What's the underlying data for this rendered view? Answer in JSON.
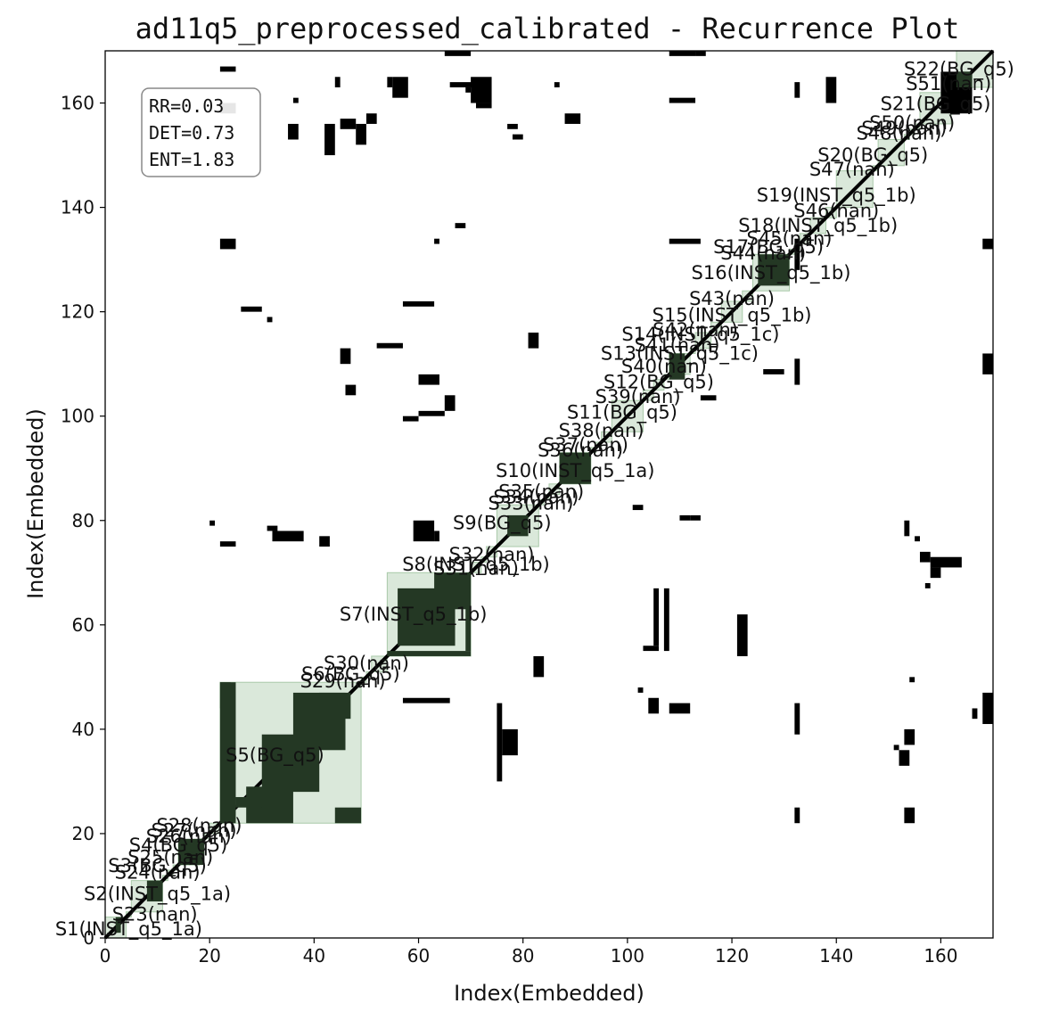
{
  "chart_data": {
    "type": "heatmap",
    "subtype": "recurrence_plot",
    "title": "ad11q5_preprocessed_calibrated - Recurrence Plot",
    "xlabel": "Index(Embedded)",
    "ylabel": "Index(Embedded)",
    "xlim": [
      0,
      170
    ],
    "ylim": [
      0,
      170
    ],
    "xticks": [
      "0",
      "20",
      "40",
      "60",
      "80",
      "100",
      "120",
      "140",
      "160"
    ],
    "yticks": [
      "0",
      "20",
      "40",
      "60",
      "80",
      "100",
      "120",
      "140",
      "160"
    ],
    "grid": false,
    "colors": {
      "recurrence": "#000000",
      "segment_fill": "#d6e6d6",
      "segment_stroke": "#a9c9a9",
      "block_on_segment": "#243824"
    },
    "stats": [
      "RR=0.03",
      "DET=0.73",
      "ENT=1.83"
    ],
    "segments": [
      {
        "label": "S1(INST_q5_1a)",
        "start": 0,
        "end": 4
      },
      {
        "label": "S23(nan)",
        "start": 4,
        "end": 5
      },
      {
        "label": "S2(INST_q5_1a)",
        "start": 5,
        "end": 11
      },
      {
        "label": "S24(nan)",
        "start": 11,
        "end": 12
      },
      {
        "label": "S3(BG_q5)",
        "start": 12,
        "end": 13
      },
      {
        "label": "S25(nan)",
        "start": 13,
        "end": 14
      },
      {
        "label": "S4(BG_q5)",
        "start": 14,
        "end": 18
      },
      {
        "label": "S26(nan)",
        "start": 18,
        "end": 19
      },
      {
        "label": "S27(nan)",
        "start": 19,
        "end": 20
      },
      {
        "label": "S28(nan)",
        "start": 20,
        "end": 22
      },
      {
        "label": "S5(BG_q5)",
        "start": 22,
        "end": 49
      },
      {
        "label": "S29(nan)",
        "start": 49,
        "end": 50
      },
      {
        "label": "S6(BG_q5)",
        "start": 50,
        "end": 51
      },
      {
        "label": "S30(nan)",
        "start": 51,
        "end": 54
      },
      {
        "label": "S7(INST_q5_1b)",
        "start": 54,
        "end": 70
      },
      {
        "label": "S8(INST_q5_1b)",
        "start": 70,
        "end": 72
      },
      {
        "label": "S31(nan)",
        "start": 72,
        "end": 73
      },
      {
        "label": "S32(nan)",
        "start": 73,
        "end": 75
      },
      {
        "label": "S9(BG_q5)",
        "start": 75,
        "end": 83
      },
      {
        "label": "S33(nan)",
        "start": 83,
        "end": 84
      },
      {
        "label": "S34(nan)",
        "start": 84,
        "end": 85
      },
      {
        "label": "S35(nan)",
        "start": 85,
        "end": 87
      },
      {
        "label": "S10(INST_q5_1a)",
        "start": 87,
        "end": 93
      },
      {
        "label": "S36(nan)",
        "start": 93,
        "end": 94
      },
      {
        "label": "S37(nan)",
        "start": 94,
        "end": 95
      },
      {
        "label": "S38(nan)",
        "start": 95,
        "end": 97
      },
      {
        "label": "S11(BG_q5)",
        "start": 97,
        "end": 103
      },
      {
        "label": "S39(nan)",
        "start": 103,
        "end": 105
      },
      {
        "label": "S12(BG_q5)",
        "start": 105,
        "end": 107
      },
      {
        "label": "S40(nan)",
        "start": 107,
        "end": 108
      },
      {
        "label": "S13(INST_q5_1c)",
        "start": 108,
        "end": 112
      },
      {
        "label": "S41(nan)",
        "start": 112,
        "end": 113
      },
      {
        "label": "S14(INST_q5_1c)",
        "start": 113,
        "end": 116
      },
      {
        "label": "S42(nan)",
        "start": 116,
        "end": 118
      },
      {
        "label": "S15(INST_q5_1b)",
        "start": 118,
        "end": 122
      },
      {
        "label": "S43(nan)",
        "start": 122,
        "end": 124
      },
      {
        "label": "S16(INST_q5_1b)",
        "start": 124,
        "end": 131
      },
      {
        "label": "S44(nan)",
        "start": 131,
        "end": 132
      },
      {
        "label": "S17(BG_q5)",
        "start": 132,
        "end": 133
      },
      {
        "label": "S45(nan)",
        "start": 133,
        "end": 135
      },
      {
        "label": "S18(INST_q5_1b)",
        "start": 135,
        "end": 138
      },
      {
        "label": "S46(nan)",
        "start": 138,
        "end": 140
      },
      {
        "label": "S19(INST_q5_1b)",
        "start": 140,
        "end": 147
      },
      {
        "label": "S47(nan)",
        "start": 147,
        "end": 148
      },
      {
        "label": "S20(BG_q5)",
        "start": 148,
        "end": 153
      },
      {
        "label": "S48(nan)",
        "start": 153,
        "end": 154
      },
      {
        "label": "S49(nan)",
        "start": 154,
        "end": 155
      },
      {
        "label": "S50(nan)",
        "start": 155,
        "end": 156
      },
      {
        "label": "S21(BG_q5)",
        "start": 156,
        "end": 162
      },
      {
        "label": "S51(nan)",
        "start": 162,
        "end": 163
      },
      {
        "label": "S22(BG_q5)",
        "start": 163,
        "end": 170
      }
    ],
    "recurrence_blocks": [
      [
        22,
        25,
        22,
        49
      ],
      [
        27,
        36,
        22,
        29
      ],
      [
        30,
        41,
        28,
        39
      ],
      [
        36,
        46,
        36,
        47
      ],
      [
        44,
        49,
        22,
        25
      ],
      [
        22,
        24,
        44,
        49
      ],
      [
        25,
        30,
        25,
        27
      ],
      [
        41,
        47,
        42,
        47
      ],
      [
        56,
        67,
        56,
        67
      ],
      [
        54,
        70,
        54,
        55
      ],
      [
        69,
        70,
        55,
        70
      ],
      [
        63,
        70,
        63,
        70
      ],
      [
        87,
        93,
        87,
        93
      ],
      [
        108,
        111,
        107,
        112
      ],
      [
        125,
        131,
        125,
        131
      ],
      [
        160,
        166,
        158,
        166
      ],
      [
        163,
        166,
        163,
        166
      ],
      [
        77,
        81,
        77,
        81
      ],
      [
        8,
        11,
        7,
        11
      ],
      [
        2,
        3,
        1,
        4
      ],
      [
        14,
        19,
        14,
        19
      ],
      [
        22,
        25,
        75,
        76
      ],
      [
        22,
        25,
        132,
        134
      ],
      [
        22,
        25,
        158,
        160
      ],
      [
        22,
        25,
        166,
        167
      ],
      [
        26,
        30,
        120,
        121
      ],
      [
        31,
        32,
        118,
        119
      ],
      [
        32,
        38,
        76,
        78
      ],
      [
        41,
        43,
        75,
        77
      ],
      [
        45,
        47,
        110,
        113
      ],
      [
        45,
        48,
        155,
        157
      ],
      [
        46,
        48,
        104,
        106
      ],
      [
        48,
        50,
        152,
        156
      ],
      [
        52,
        57,
        113,
        114
      ],
      [
        57,
        60,
        99,
        100
      ],
      [
        59,
        63,
        76,
        80
      ],
      [
        60,
        65,
        100,
        101
      ],
      [
        60,
        64,
        106,
        108
      ],
      [
        57,
        66,
        45,
        46
      ],
      [
        57,
        63,
        121,
        122
      ],
      [
        65,
        67,
        101,
        104
      ],
      [
        63,
        64,
        76,
        78
      ],
      [
        67,
        69,
        136,
        137
      ],
      [
        54,
        55,
        163,
        165
      ],
      [
        75,
        76,
        30,
        45
      ],
      [
        76,
        79,
        35,
        40
      ],
      [
        81,
        83,
        113,
        116
      ],
      [
        82,
        84,
        50,
        54
      ],
      [
        63,
        64,
        133,
        134
      ],
      [
        105,
        106,
        56,
        67
      ],
      [
        107,
        108,
        55,
        67
      ],
      [
        103,
        106,
        55,
        56
      ],
      [
        104,
        106,
        43,
        46
      ],
      [
        108,
        114,
        133,
        134
      ],
      [
        108,
        112,
        43,
        45
      ],
      [
        108,
        113,
        160,
        161
      ],
      [
        110,
        112,
        80,
        81
      ],
      [
        112,
        114,
        80,
        81
      ],
      [
        101,
        103,
        82,
        83
      ],
      [
        102,
        103,
        47,
        48
      ],
      [
        113,
        115,
        169,
        170
      ],
      [
        114,
        117,
        103,
        104
      ],
      [
        121,
        123,
        54,
        62
      ],
      [
        126,
        130,
        108,
        109
      ],
      [
        132,
        133,
        106,
        111
      ],
      [
        132,
        133,
        22,
        25
      ],
      [
        132,
        133,
        39,
        45
      ],
      [
        132,
        133,
        161,
        164
      ],
      [
        132,
        133,
        128,
        134
      ],
      [
        138,
        140,
        160,
        165
      ],
      [
        153,
        155,
        22,
        25
      ],
      [
        153,
        155,
        37,
        40
      ],
      [
        154,
        155,
        49,
        50
      ],
      [
        156,
        158,
        72,
        74
      ],
      [
        158,
        164,
        71,
        73
      ],
      [
        158,
        160,
        69,
        71
      ],
      [
        157,
        158,
        67,
        68
      ],
      [
        153,
        154,
        77,
        80
      ],
      [
        155,
        156,
        76,
        77
      ],
      [
        168,
        170,
        108,
        112
      ],
      [
        168,
        170,
        132,
        134
      ],
      [
        168,
        170,
        41,
        47
      ],
      [
        166,
        167,
        42,
        44
      ],
      [
        152,
        154,
        33,
        36
      ],
      [
        151,
        152,
        36,
        37
      ],
      [
        42,
        44,
        150,
        156
      ],
      [
        35,
        37,
        153,
        156
      ],
      [
        44,
        45,
        163,
        165
      ],
      [
        36,
        37,
        160,
        161
      ],
      [
        50,
        52,
        156,
        158
      ],
      [
        55,
        58,
        161,
        165
      ],
      [
        65,
        70,
        169,
        170
      ],
      [
        71,
        74,
        159,
        160
      ],
      [
        69,
        70,
        162,
        163
      ],
      [
        66,
        72,
        163,
        164
      ],
      [
        70,
        74,
        160,
        165
      ],
      [
        77,
        79,
        155,
        156
      ],
      [
        78,
        80,
        153,
        154
      ],
      [
        86,
        87,
        163,
        164
      ],
      [
        88,
        91,
        156,
        158
      ],
      [
        108,
        113,
        169,
        170
      ],
      [
        20,
        21,
        79,
        80
      ],
      [
        31,
        33,
        78,
        79
      ]
    ],
    "label_anchors": [
      {
        "label": "S1(INST_q5_1a)",
        "x": 4.5,
        "y": 1.7
      },
      {
        "label": "S23(nan)",
        "x": 9.5,
        "y": 4.5
      },
      {
        "label": "S2(INST_q5_1a)",
        "x": 10,
        "y": 8.5
      },
      {
        "label": "S24(nan)",
        "x": 10,
        "y": 12.6
      },
      {
        "label": "S3(BG_q5)",
        "x": 10,
        "y": 13.8
      },
      {
        "label": "S25(nan)",
        "x": 12.5,
        "y": 15.5
      },
      {
        "label": "S4(BG_q5)",
        "x": 14,
        "y": 17.8
      },
      {
        "label": "S26(nan)",
        "x": 16,
        "y": 19.5
      },
      {
        "label": "S27(nan)",
        "x": 17,
        "y": 20.6
      },
      {
        "label": "S28(nan)",
        "x": 18,
        "y": 21.5
      },
      {
        "label": "S5(BG_q5)",
        "x": 32.5,
        "y": 35
      },
      {
        "label": "S29(nan)",
        "x": 45.5,
        "y": 49.2
      },
      {
        "label": "S6(BG_q5)",
        "x": 47,
        "y": 50.6
      },
      {
        "label": "S30(nan)",
        "x": 50,
        "y": 52.6
      },
      {
        "label": "S7(INST_q5_1b)",
        "x": 59,
        "y": 62
      },
      {
        "label": "S8(INST_q5_1b)",
        "x": 71,
        "y": 71.6
      },
      {
        "label": "S31(nan)",
        "x": 71,
        "y": 70.8
      },
      {
        "label": "S32(nan)",
        "x": 74,
        "y": 73.5
      },
      {
        "label": "S9(BG_q5)",
        "x": 76,
        "y": 79.5
      },
      {
        "label": "S33(nan)",
        "x": 81.5,
        "y": 83.3
      },
      {
        "label": "S34(nan)",
        "x": 82.5,
        "y": 84.5
      },
      {
        "label": "S35(nan)",
        "x": 83.5,
        "y": 85.5
      },
      {
        "label": "S10(INST_q5_1a)",
        "x": 90,
        "y": 89.5
      },
      {
        "label": "S36(nan)",
        "x": 91,
        "y": 93.5
      },
      {
        "label": "S37(nan)",
        "x": 92,
        "y": 94.5
      },
      {
        "label": "S38(nan)",
        "x": 95,
        "y": 97.2
      },
      {
        "label": "S11(BG_q5)",
        "x": 99,
        "y": 100.7
      },
      {
        "label": "S39(nan)",
        "x": 102,
        "y": 103.7
      },
      {
        "label": "S12(BG_q5)",
        "x": 106,
        "y": 106.5
      },
      {
        "label": "S40(nan)",
        "x": 107,
        "y": 109.5
      },
      {
        "label": "S13(INST_q5_1c)",
        "x": 110,
        "y": 112
      },
      {
        "label": "S41(nan)",
        "x": 109.5,
        "y": 113.6
      },
      {
        "label": "S14(INST_q5_1c)",
        "x": 114,
        "y": 115.7
      },
      {
        "label": "S42(nan)",
        "x": 113,
        "y": 116.5
      },
      {
        "label": "S15(INST_q5_1b)",
        "x": 120,
        "y": 119.3
      },
      {
        "label": "S43(nan)",
        "x": 120,
        "y": 122.5
      },
      {
        "label": "S16(INST_q5_1b)",
        "x": 127.5,
        "y": 127.5
      },
      {
        "label": "S44(nan)",
        "x": 126,
        "y": 131.2
      },
      {
        "label": "S17(BG_q5)",
        "x": 127,
        "y": 132.4
      },
      {
        "label": "S45(nan)",
        "x": 131,
        "y": 134
      },
      {
        "label": "S18(INST_q5_1b)",
        "x": 136.5,
        "y": 136.5
      },
      {
        "label": "S46(nan)",
        "x": 140,
        "y": 139.3
      },
      {
        "label": "S19(INST_q5_1b)",
        "x": 140,
        "y": 142.3
      },
      {
        "label": "S47(nan)",
        "x": 143,
        "y": 147.3
      },
      {
        "label": "S20(BG_q5)",
        "x": 147,
        "y": 150
      },
      {
        "label": "S48(nan)",
        "x": 152,
        "y": 154.2
      },
      {
        "label": "S49(nan)",
        "x": 153,
        "y": 155.1
      },
      {
        "label": "S50(nan)",
        "x": 154.5,
        "y": 156.2
      },
      {
        "label": "S21(BG_q5)",
        "x": 159,
        "y": 159.8
      },
      {
        "label": "S51(nan)",
        "x": 161.5,
        "y": 163.7
      },
      {
        "label": "S22(BG_q5)",
        "x": 163.5,
        "y": 166.5
      }
    ]
  }
}
